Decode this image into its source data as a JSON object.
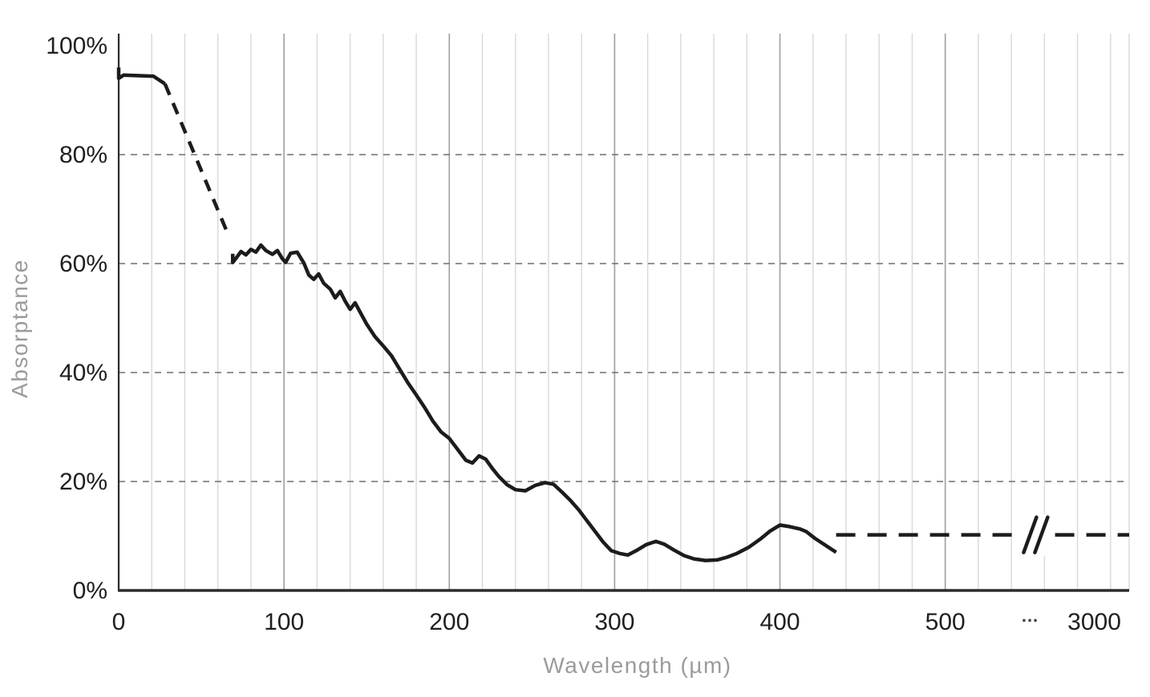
{
  "chart_data": {
    "type": "line",
    "title": "",
    "xlabel": "Wavelength (µm)",
    "ylabel": "Absorptance",
    "ylim": [
      0,
      100
    ],
    "grid": {
      "vertical": "solid-minor-major",
      "horizontal": "dashed"
    },
    "colors": {
      "line": "#1c1c1c",
      "grid_minor": "#d9d9d9",
      "grid_major": "#9e9e9e",
      "dashed_grid": "#6f6f6f",
      "axis": "#2b2b2b",
      "tick_label": "#1f1f1f",
      "axis_title": "#9b9b9b"
    },
    "y_ticks": [
      {
        "value": 0,
        "label": "0%"
      },
      {
        "value": 20,
        "label": "20%"
      },
      {
        "value": 40,
        "label": "40%"
      },
      {
        "value": 60,
        "label": "60%"
      },
      {
        "value": 80,
        "label": "80%"
      },
      {
        "value": 100,
        "label": "100%"
      }
    ],
    "y_grid_values": [
      20,
      40,
      60,
      80
    ],
    "x_axis": {
      "ticks": [
        {
          "value": 0,
          "label": "0"
        },
        {
          "value": 100,
          "label": "100"
        },
        {
          "value": 200,
          "label": "200"
        },
        {
          "value": 300,
          "label": "300"
        },
        {
          "value": 400,
          "label": "400"
        },
        {
          "value": 500,
          "label": "500"
        }
      ],
      "far_tick": {
        "value": 3000,
        "label": "3000",
        "frac": 0.9655
      },
      "dots_label": "...",
      "dots_frac": 0.902,
      "break_marker_frac": 0.9075,
      "linear_max": 500,
      "linear_end_frac": 0.818,
      "break_start_data": 540,
      "break_start_frac": 0.8835,
      "minor_step": 20
    },
    "series": [
      {
        "name": "initial-solid",
        "style": "solid",
        "points": [
          [
            0,
            96
          ],
          [
            0,
            94
          ],
          [
            3,
            94.6
          ],
          [
            21,
            94.4
          ],
          [
            28,
            93
          ]
        ]
      },
      {
        "name": "dashed-descent",
        "style": "dashed",
        "points": [
          [
            28,
            93
          ],
          [
            66,
            65.5
          ]
        ]
      },
      {
        "name": "main-curve",
        "style": "solid",
        "points": [
          [
            69,
            61.8
          ],
          [
            69,
            60.2
          ],
          [
            71,
            61
          ],
          [
            74,
            62.2
          ],
          [
            77,
            61.6
          ],
          [
            80,
            62.6
          ],
          [
            83,
            62.1
          ],
          [
            86,
            63.4
          ],
          [
            89,
            62.4
          ],
          [
            93,
            61.7
          ],
          [
            96,
            62.4
          ],
          [
            99,
            60.9
          ],
          [
            101,
            60.2
          ],
          [
            104,
            61.9
          ],
          [
            108,
            62.1
          ],
          [
            112,
            60.1
          ],
          [
            115,
            57.9
          ],
          [
            118,
            57.1
          ],
          [
            121,
            58.1
          ],
          [
            124,
            56.4
          ],
          [
            128,
            55.3
          ],
          [
            131,
            53.7
          ],
          [
            134,
            54.9
          ],
          [
            137,
            53.1
          ],
          [
            140,
            51.6
          ],
          [
            143,
            52.8
          ],
          [
            146,
            51.1
          ],
          [
            150,
            48.9
          ],
          [
            155,
            46.6
          ],
          [
            160,
            44.9
          ],
          [
            165,
            43.1
          ],
          [
            170,
            40.6
          ],
          [
            175,
            38.1
          ],
          [
            180,
            35.9
          ],
          [
            185,
            33.6
          ],
          [
            190,
            31.1
          ],
          [
            195,
            29.1
          ],
          [
            200,
            27.9
          ],
          [
            205,
            25.9
          ],
          [
            210,
            23.9
          ],
          [
            214,
            23.4
          ],
          [
            218,
            24.7
          ],
          [
            222,
            24.1
          ],
          [
            226,
            22.4
          ],
          [
            230,
            20.9
          ],
          [
            235,
            19.4
          ],
          [
            240,
            18.5
          ],
          [
            246,
            18.3
          ],
          [
            252,
            19.3
          ],
          [
            258,
            19.8
          ],
          [
            263,
            19.5
          ],
          [
            268,
            18.1
          ],
          [
            273,
            16.6
          ],
          [
            278,
            14.9
          ],
          [
            283,
            12.9
          ],
          [
            288,
            10.9
          ],
          [
            293,
            8.9
          ],
          [
            298,
            7.3
          ],
          [
            303,
            6.8
          ],
          [
            308,
            6.5
          ],
          [
            313,
            7.3
          ],
          [
            319,
            8.4
          ],
          [
            325,
            9.0
          ],
          [
            330,
            8.5
          ],
          [
            336,
            7.4
          ],
          [
            342,
            6.4
          ],
          [
            348,
            5.8
          ],
          [
            355,
            5.5
          ],
          [
            362,
            5.6
          ],
          [
            368,
            6.1
          ],
          [
            374,
            6.8
          ],
          [
            381,
            7.9
          ],
          [
            388,
            9.4
          ],
          [
            394,
            10.9
          ],
          [
            400,
            12.0
          ],
          [
            406,
            11.7
          ],
          [
            412,
            11.3
          ],
          [
            416,
            10.8
          ],
          [
            421,
            9.6
          ],
          [
            427,
            8.4
          ],
          [
            434,
            7.0
          ]
        ]
      },
      {
        "name": "dashed-tail",
        "style": "dashed-long",
        "points": [
          [
            434,
            10.2
          ],
          [
            4040,
            10.2
          ]
        ]
      }
    ]
  }
}
